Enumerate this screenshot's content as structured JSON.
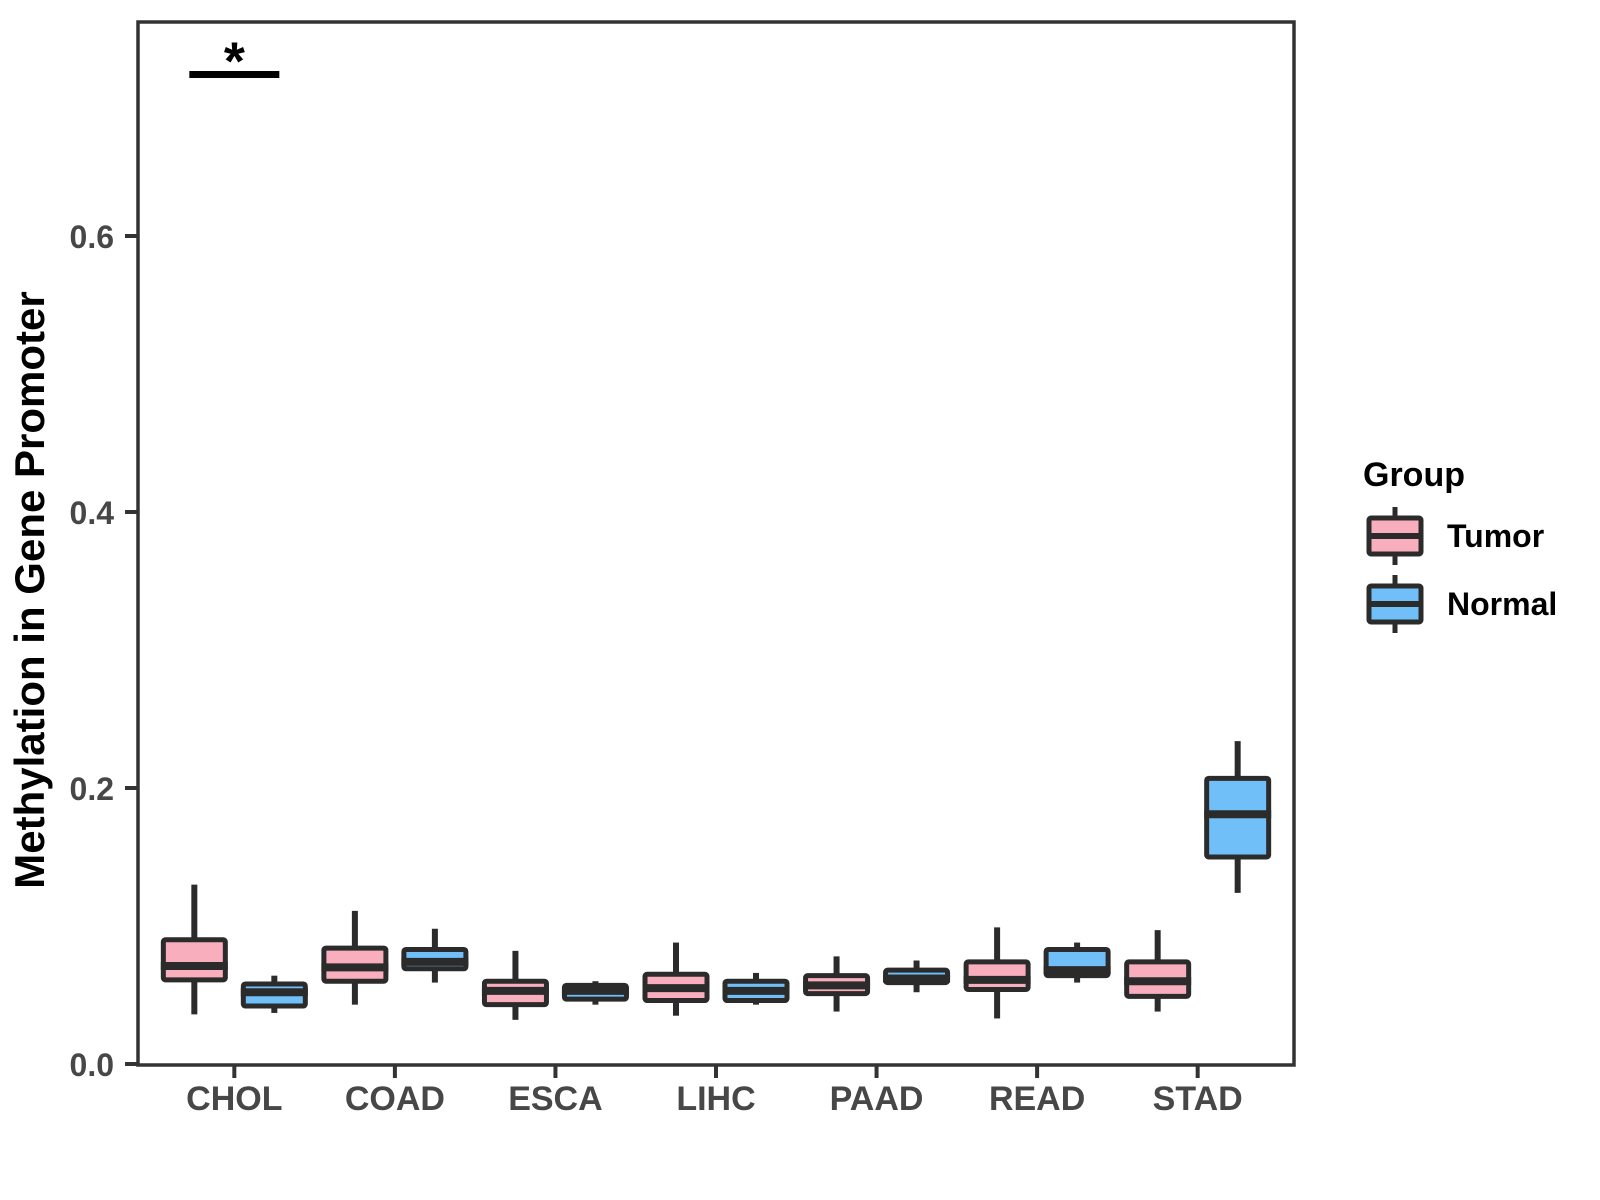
{
  "chart_data": {
    "type": "grouped_boxplot",
    "title": "",
    "xlabel": "",
    "ylabel": "Methylation in Gene Promoter",
    "legend_title": "Group",
    "legend_position": "right",
    "grid": false,
    "ylim": [
      0.0,
      0.757
    ],
    "y_ticks": [
      0.0,
      0.2,
      0.4,
      0.6
    ],
    "y_tick_labels": [
      "0.0",
      "0.2",
      "0.4",
      "0.6"
    ],
    "categories": [
      "CHOL",
      "COAD",
      "ESCA",
      "LIHC",
      "PAAD",
      "READ",
      "STAD"
    ],
    "series": [
      {
        "name": "Tumor",
        "color": "#F9AEBD",
        "boxes": [
          {
            "min": 0.036,
            "q1": 0.061,
            "median": 0.071,
            "q3": 0.09,
            "max": 0.13
          },
          {
            "min": 0.043,
            "q1": 0.06,
            "median": 0.07,
            "q3": 0.084,
            "max": 0.111
          },
          {
            "min": 0.032,
            "q1": 0.043,
            "median": 0.053,
            "q3": 0.06,
            "max": 0.082
          },
          {
            "min": 0.035,
            "q1": 0.046,
            "median": 0.055,
            "q3": 0.065,
            "max": 0.088
          },
          {
            "min": 0.038,
            "q1": 0.051,
            "median": 0.057,
            "q3": 0.064,
            "max": 0.078
          },
          {
            "min": 0.033,
            "q1": 0.054,
            "median": 0.061,
            "q3": 0.074,
            "max": 0.099
          },
          {
            "min": 0.038,
            "q1": 0.049,
            "median": 0.06,
            "q3": 0.074,
            "max": 0.097
          }
        ]
      },
      {
        "name": "Normal",
        "color": "#70BFF8",
        "boxes": [
          {
            "min": 0.037,
            "q1": 0.042,
            "median": 0.052,
            "q3": 0.058,
            "max": 0.064
          },
          {
            "min": 0.059,
            "q1": 0.069,
            "median": 0.074,
            "q3": 0.083,
            "max": 0.098
          },
          {
            "min": 0.043,
            "q1": 0.047,
            "median": 0.053,
            "q3": 0.057,
            "max": 0.06
          },
          {
            "min": 0.043,
            "q1": 0.046,
            "median": 0.053,
            "q3": 0.06,
            "max": 0.066
          },
          {
            "min": 0.052,
            "q1": 0.059,
            "median": 0.062,
            "q3": 0.068,
            "max": 0.075
          },
          {
            "min": 0.059,
            "q1": 0.064,
            "median": 0.068,
            "q3": 0.083,
            "max": 0.088
          },
          {
            "min": 0.124,
            "q1": 0.15,
            "median": 0.181,
            "q3": 0.207,
            "max": 0.234
          }
        ]
      }
    ],
    "annotation": {
      "label": "*",
      "category": "CHOL",
      "y_value": 0.717
    },
    "style": {
      "box_border_color": "#2B2B2B",
      "panel_border_color": "#333333",
      "tick_color": "#333333",
      "axis_text_color": "#474747"
    }
  }
}
